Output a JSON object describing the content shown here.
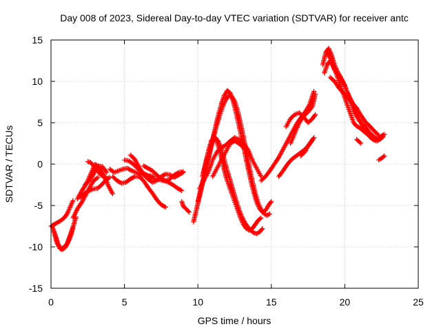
{
  "chart_data": {
    "type": "scatter",
    "title": "Day 008 of 2023, Sidereal Day-to-day VTEC variation (SDTVAR) for receiver antc",
    "xlabel": "GPS time / hours",
    "ylabel": "SDTVAR / TECUs",
    "xlim": [
      0,
      25
    ],
    "ylim": [
      -15,
      15
    ],
    "xticks": [
      "0",
      "5",
      "10",
      "15",
      "20",
      "25"
    ],
    "yticks": [
      "15",
      "10",
      "5",
      "0",
      "-5",
      "-10",
      "-15"
    ],
    "grid": true,
    "marker": "+",
    "series": [
      {
        "name": "SDTVAR",
        "color": "#ff0000",
        "tracks": [
          {
            "x": [
              0.0,
              0.3,
              0.6,
              0.9,
              1.1,
              1.3,
              1.5
            ],
            "y": [
              -7.5,
              -7.2,
              -6.9,
              -6.5,
              -6.0,
              -5.2,
              -4.4
            ]
          },
          {
            "x": [
              0.2,
              0.4,
              0.6,
              0.8,
              1.0,
              1.2,
              1.4,
              1.5
            ],
            "y": [
              -8.2,
              -9.5,
              -10.2,
              -10.3,
              -10.0,
              -9.3,
              -8.4,
              -7.6
            ]
          },
          {
            "x": [
              0.1,
              0.3,
              0.5,
              0.7,
              0.9,
              1.1,
              1.3,
              1.5,
              1.7
            ],
            "y": [
              -7.6,
              -8.6,
              -9.7,
              -10.3,
              -10.0,
              -9.6,
              -8.6,
              -7.6,
              -6.4
            ]
          },
          {
            "x": [
              1.5,
              1.8,
              2.1,
              2.4,
              2.7,
              2.9,
              3.2
            ],
            "y": [
              -6.5,
              -5.4,
              -4.6,
              -3.6,
              -2.6,
              -2.0,
              -1.6
            ]
          },
          {
            "x": [
              1.8,
              2.1,
              2.4,
              2.7,
              3.0,
              3.3,
              3.6,
              3.9,
              4.2
            ],
            "y": [
              -4.2,
              -3.2,
              -2.4,
              -1.2,
              0.0,
              -0.4,
              -1.3,
              -2.6,
              -3.6
            ]
          },
          {
            "x": [
              2.3,
              2.6,
              2.9,
              3.2,
              3.5,
              3.8
            ],
            "y": [
              -2.5,
              -2.0,
              -1.2,
              -0.2,
              -0.3,
              -1.0
            ]
          },
          {
            "x": [
              2.5,
              2.7,
              3.0,
              3.3,
              3.6,
              3.9
            ],
            "y": [
              0.3,
              0.2,
              -0.4,
              -1.1,
              -1.6,
              -1.8
            ]
          },
          {
            "x": [
              2.0,
              2.3,
              2.6,
              2.9,
              3.2,
              3.5,
              3.8,
              4.0
            ],
            "y": [
              -4.0,
              -3.5,
              -3.2,
              -3.0,
              -2.9,
              -2.4,
              -1.8,
              -1.6
            ]
          },
          {
            "x": [
              4.0,
              4.3,
              4.6,
              4.9,
              5.2,
              5.5,
              5.8,
              6.1,
              6.4,
              6.7,
              7.0
            ],
            "y": [
              -0.6,
              -1.0,
              -0.8,
              -0.6,
              -0.5,
              -0.8,
              -1.0,
              -1.2,
              -1.4,
              -1.4,
              -1.5
            ]
          },
          {
            "x": [
              4.2,
              4.5,
              4.8,
              5.1,
              5.4,
              5.7,
              6.0,
              6.3,
              6.6,
              6.9,
              7.2,
              7.5,
              7.8
            ],
            "y": [
              -1.5,
              -2.0,
              -2.3,
              -2.2,
              -1.8,
              -1.5,
              -1.5,
              -2.0,
              -2.8,
              -3.5,
              -4.3,
              -4.9,
              -5.2
            ]
          },
          {
            "x": [
              5.0,
              5.3,
              5.6,
              5.9,
              6.2,
              6.5,
              6.8,
              7.1,
              7.4,
              7.7,
              8.0,
              8.3,
              8.6,
              8.9
            ],
            "y": [
              0.5,
              0.4,
              0.0,
              -0.5,
              -1.0,
              -1.3,
              -1.6,
              -1.8,
              -1.9,
              -2.0,
              -2.2,
              -2.5,
              -2.9,
              -3.2
            ]
          },
          {
            "x": [
              5.4,
              5.7,
              6.0,
              6.3,
              6.6,
              6.9,
              7.2,
              7.5,
              7.8,
              8.1,
              8.4,
              8.7,
              9.0
            ],
            "y": [
              1.1,
              0.6,
              -0.4,
              -1.2,
              -1.8,
              -2.2,
              -2.0,
              -1.5,
              -1.2,
              -1.3,
              -1.6,
              -1.3,
              -1.0
            ]
          },
          {
            "x": [
              6.3,
              6.6,
              6.9,
              7.2,
              7.5,
              7.8,
              8.1,
              8.4,
              8.7,
              9.0
            ],
            "y": [
              -0.2,
              -0.5,
              -0.8,
              -1.3,
              -1.8,
              -2.0,
              -1.8,
              -1.3,
              -1.0,
              -0.9
            ]
          },
          {
            "x": [
              8.9,
              9.0,
              9.2,
              9.4
            ],
            "y": [
              -4.5,
              -5.1,
              -5.4,
              -5.8
            ]
          },
          {
            "x": [
              9.7,
              9.9,
              10.1,
              10.3,
              10.5,
              10.7,
              10.9,
              11.1,
              11.3,
              11.5,
              11.7,
              11.9,
              12.1,
              12.3,
              12.5,
              12.7,
              12.9,
              13.1,
              13.3,
              13.5,
              13.7,
              13.9,
              14.1,
              14.3,
              14.5,
              14.7,
              14.9
            ],
            "y": [
              -7.0,
              -5.5,
              -4.0,
              -2.5,
              -1.0,
              0.5,
              2.0,
              3.5,
              4.8,
              6.0,
              7.0,
              7.8,
              8.3,
              8.2,
              7.6,
              6.5,
              5.0,
              3.3,
              1.5,
              -0.3,
              -2.0,
              -3.5,
              -4.7,
              -5.5,
              -6.0,
              -6.2,
              -6.0
            ]
          },
          {
            "x": [
              10.0,
              10.2,
              10.4,
              10.6,
              10.8,
              11.0,
              11.2,
              11.4,
              11.6,
              11.8,
              12.0,
              12.2,
              12.4,
              12.6,
              12.8,
              13.0,
              13.2,
              13.4,
              13.6,
              13.8,
              14.0,
              14.2,
              14.4,
              14.6,
              14.8,
              15.0
            ],
            "y": [
              -4.5,
              -3.0,
              -1.5,
              0.0,
              1.5,
              3.0,
              4.5,
              6.0,
              7.3,
              8.3,
              8.9,
              8.6,
              7.6,
              6.2,
              4.6,
              3.0,
              1.3,
              -0.4,
              -2.0,
              -3.4,
              -4.6,
              -5.4,
              -5.8,
              -5.6,
              -5.0,
              -4.5
            ]
          },
          {
            "x": [
              10.1,
              10.4,
              10.7,
              11.0,
              11.3,
              11.6,
              11.9,
              12.2,
              12.5,
              12.8,
              13.1,
              13.4,
              13.7,
              14.0,
              14.3
            ],
            "y": [
              -3.0,
              -2.0,
              -1.0,
              0.5,
              1.5,
              2.0,
              2.3,
              2.8,
              3.2,
              3.0,
              2.5,
              1.8,
              0.5,
              -0.5,
              -1.5
            ]
          },
          {
            "x": [
              10.3,
              10.5,
              10.7,
              10.9,
              11.1,
              11.3,
              11.5,
              11.7,
              11.9,
              12.1,
              12.3,
              12.5,
              12.7,
              12.9,
              13.1,
              13.3,
              13.5,
              13.7,
              13.9,
              14.1,
              14.3
            ],
            "y": [
              -1.5,
              0.0,
              1.5,
              2.8,
              3.3,
              2.7,
              1.5,
              0.0,
              -1.5,
              -2.5,
              -3.5,
              -4.5,
              -5.5,
              -6.5,
              -7.3,
              -7.8,
              -8.0,
              -7.8,
              -7.3,
              -6.8,
              -6.5
            ]
          },
          {
            "x": [
              10.4,
              10.6,
              10.8,
              11.0,
              11.2,
              11.4,
              11.6,
              11.8,
              12.0,
              12.2,
              12.4,
              12.6,
              12.8,
              13.0,
              13.2,
              13.4,
              13.6,
              13.8,
              14.0,
              14.2,
              14.4
            ],
            "y": [
              -1.0,
              0.5,
              1.8,
              2.8,
              3.2,
              2.7,
              1.8,
              0.5,
              -0.8,
              -2.0,
              -3.2,
              -4.4,
              -5.5,
              -6.4,
              -7.1,
              -7.6,
              -8.0,
              -8.3,
              -8.4,
              -8.2,
              -7.8
            ]
          },
          {
            "x": [
              11.0,
              11.3,
              11.6,
              11.9,
              12.2,
              12.5,
              12.8,
              13.1,
              13.4
            ],
            "y": [
              -1.5,
              -0.5,
              0.5,
              1.5,
              2.5,
              2.8,
              2.5,
              2.0,
              1.5
            ]
          },
          {
            "x": [
              14.3,
              14.6,
              14.9,
              15.2,
              15.5,
              15.8,
              16.1,
              16.4,
              16.7,
              17.0,
              17.3,
              17.6,
              17.9
            ],
            "y": [
              -2.0,
              -1.5,
              -0.8,
              0.0,
              0.8,
              1.8,
              2.8,
              3.8,
              4.8,
              5.6,
              6.3,
              7.2,
              8.8
            ]
          },
          {
            "x": [
              15.5,
              15.8,
              16.1,
              16.4,
              16.7,
              17.0,
              17.3,
              17.6,
              17.9
            ],
            "y": [
              -1.5,
              -0.8,
              0.0,
              0.6,
              1.0,
              1.4,
              1.8,
              2.4,
              3.2
            ]
          },
          {
            "x": [
              16.0,
              16.3,
              16.6,
              16.9,
              17.2,
              17.5,
              17.8,
              18.0
            ],
            "y": [
              4.5,
              5.5,
              6.0,
              6.2,
              5.7,
              5.0,
              5.5,
              6.0
            ]
          },
          {
            "x": [
              16.3,
              16.6,
              16.9,
              17.2,
              17.5,
              17.8,
              18.0
            ],
            "y": [
              2.5,
              3.8,
              5.0,
              5.8,
              6.3,
              7.0,
              8.5
            ]
          },
          {
            "x": [
              17.0,
              17.3,
              17.6,
              17.9
            ],
            "y": [
              1.0,
              1.5,
              2.5,
              3.2
            ]
          },
          {
            "x": [
              18.5,
              18.7,
              18.9,
              19.1,
              19.3,
              19.5,
              19.7,
              19.9,
              20.1,
              20.3,
              20.5,
              20.7,
              20.9,
              21.1,
              21.3,
              21.5,
              21.7,
              21.9,
              22.1,
              22.3,
              22.5,
              22.7
            ],
            "y": [
              12.0,
              13.5,
              14.0,
              13.2,
              12.0,
              11.2,
              10.5,
              9.8,
              9.0,
              8.2,
              7.5,
              6.6,
              5.8,
              5.0,
              4.3,
              3.8,
              3.3,
              3.0,
              3.0,
              3.2,
              3.4,
              3.6
            ]
          },
          {
            "x": [
              18.6,
              18.8,
              19.0,
              19.2,
              19.4,
              19.6,
              19.8,
              20.0,
              20.2,
              20.4,
              20.6,
              20.8,
              21.0,
              21.2,
              21.4,
              21.6,
              21.8,
              22.0,
              22.2,
              22.4,
              22.6
            ],
            "y": [
              11.0,
              12.0,
              12.5,
              11.8,
              11.0,
              10.8,
              10.2,
              9.5,
              8.5,
              7.5,
              6.5,
              5.8,
              5.2,
              4.8,
              4.5,
              4.0,
              3.6,
              3.3,
              3.0,
              3.2,
              3.5
            ]
          },
          {
            "x": [
              18.8,
              19.0,
              19.2,
              19.4,
              19.6,
              19.8,
              20.0,
              20.2,
              20.4,
              20.6,
              20.8,
              21.0,
              21.2,
              21.4,
              21.6,
              21.8,
              22.0,
              22.2,
              22.4,
              22.6
            ],
            "y": [
              13.5,
              12.8,
              12.0,
              11.0,
              10.0,
              9.0,
              8.0,
              7.0,
              6.0,
              5.0,
              4.6,
              4.4,
              4.1,
              3.8,
              3.5,
              3.2,
              2.9,
              2.8,
              3.0,
              3.3
            ]
          },
          {
            "x": [
              19.0,
              19.3,
              19.6,
              19.9,
              20.2,
              20.5,
              20.8,
              21.1,
              21.4,
              21.7,
              22.0,
              22.3
            ],
            "y": [
              10.5,
              10.0,
              9.2,
              8.6,
              8.0,
              7.4,
              6.8,
              5.9,
              5.1,
              4.6,
              4.0,
              3.5
            ]
          },
          {
            "x": [
              20.8,
              21.1
            ],
            "y": [
              3.0,
              2.5
            ]
          },
          {
            "x": [
              22.3,
              22.5,
              22.7
            ],
            "y": [
              0.5,
              0.7,
              1.0
            ]
          }
        ]
      }
    ]
  }
}
